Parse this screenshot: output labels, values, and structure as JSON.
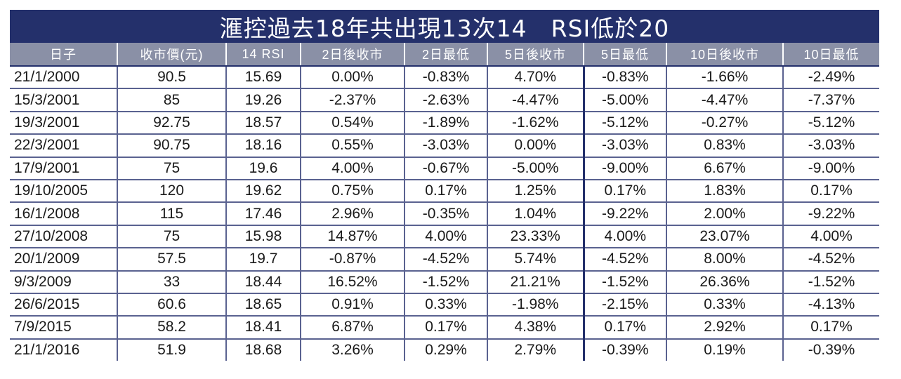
{
  "title": "滙控過去18年共出現13次14　RSI低於20",
  "headers": [
    "日子",
    "收市價(元)",
    "14 RSI",
    "2日後收市",
    "2日最低",
    "5日後收市",
    "5日最低",
    "10日後收市",
    "10日最低"
  ],
  "rows": [
    [
      "21/1/2000",
      "90.5",
      "15.69",
      "0.00%",
      "-0.83%",
      "4.70%",
      "-0.83%",
      "-1.66%",
      "-2.49%"
    ],
    [
      "15/3/2001",
      "85",
      "19.26",
      "-2.37%",
      "-2.63%",
      "-4.47%",
      "-5.00%",
      "-4.47%",
      "-7.37%"
    ],
    [
      "19/3/2001",
      "92.75",
      "18.57",
      "0.54%",
      "-1.89%",
      "-1.62%",
      "-5.12%",
      "-0.27%",
      "-5.12%"
    ],
    [
      "22/3/2001",
      "90.75",
      "18.16",
      "0.55%",
      "-3.03%",
      "0.00%",
      "-3.03%",
      "0.83%",
      "-3.03%"
    ],
    [
      "17/9/2001",
      "75",
      "19.6",
      "4.00%",
      "-0.67%",
      "-5.00%",
      "-9.00%",
      "6.67%",
      "-9.00%"
    ],
    [
      "19/10/2005",
      "120",
      "19.62",
      "0.75%",
      "0.17%",
      "1.25%",
      "0.17%",
      "1.83%",
      "0.17%"
    ],
    [
      "16/1/2008",
      "115",
      "17.46",
      "2.96%",
      "-0.35%",
      "1.04%",
      "-9.22%",
      "2.00%",
      "-9.22%"
    ],
    [
      "27/10/2008",
      "75",
      "15.98",
      "14.87%",
      "4.00%",
      "23.33%",
      "4.00%",
      "23.07%",
      "4.00%"
    ],
    [
      "20/1/2009",
      "57.5",
      "19.7",
      "-0.87%",
      "-4.52%",
      "5.74%",
      "-4.52%",
      "8.00%",
      "-4.52%"
    ],
    [
      "9/3/2009",
      "33",
      "18.44",
      "16.52%",
      "-1.52%",
      "21.21%",
      "-1.52%",
      "26.36%",
      "-1.52%"
    ],
    [
      "26/6/2015",
      "60.6",
      "18.65",
      "0.91%",
      "0.33%",
      "-1.98%",
      "-2.15%",
      "0.33%",
      "-4.13%"
    ],
    [
      "7/9/2015",
      "58.2",
      "18.41",
      "6.87%",
      "0.17%",
      "4.38%",
      "0.17%",
      "2.92%",
      "0.17%"
    ],
    [
      "21/1/2016",
      "51.9",
      "18.68",
      "3.26%",
      "0.29%",
      "2.79%",
      "-0.39%",
      "0.19%",
      "-0.39%"
    ]
  ],
  "colors": {
    "title_bg": "#24306b",
    "header_bg": "#8a90a6",
    "line": "#5a6290"
  }
}
